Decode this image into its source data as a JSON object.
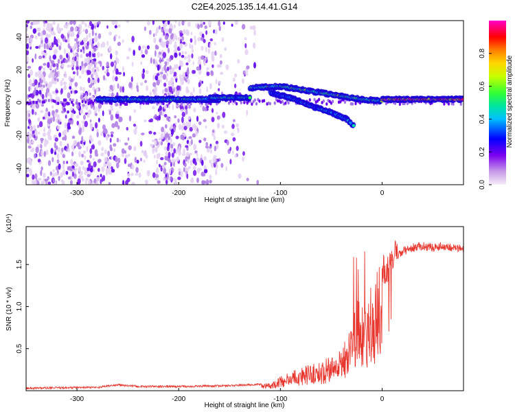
{
  "title": "C2E4.2025.135.14.41.G14",
  "chart_data": [
    {
      "type": "heatmap",
      "xlabel": "Height of straight line (km)",
      "ylabel": "Frequency (Hz)",
      "xlim": [
        -350,
        80
      ],
      "ylim": [
        -50,
        50
      ],
      "xticks": [
        -300,
        -200,
        -100,
        0
      ],
      "yticks": [
        -40,
        -20,
        0,
        20,
        40
      ],
      "colorbar": {
        "label": "Normalized spectral amplitude",
        "range": [
          0,
          1
        ],
        "ticks": [
          "0.0",
          "0.2",
          "0.4",
          "0.6",
          "0.8"
        ]
      },
      "ridges": [
        {
          "x": [
            -280,
            -160
          ],
          "y": [
            2,
            2
          ],
          "amplitude": 0.55
        },
        {
          "x": [
            -170,
            -130
          ],
          "y": [
            3,
            3
          ],
          "amplitude": 0.55
        },
        {
          "x": [
            -130,
            -100,
            -80,
            -60,
            -40,
            -20,
            0
          ],
          "y": [
            9,
            10,
            8,
            6,
            4,
            2,
            1
          ],
          "amplitude": 0.6
        },
        {
          "x": [
            -110,
            -90,
            -70,
            -50,
            -35,
            -28
          ],
          "y": [
            6,
            3,
            -2,
            -6,
            -10,
            -14
          ],
          "amplitude": 0.45
        },
        {
          "x": [
            0,
            80
          ],
          "y": [
            2,
            2
          ],
          "amplitude": 1.0
        }
      ]
    },
    {
      "type": "line",
      "xlabel": "Height of straight line (km)",
      "ylabel": "SNR (10 * v/v)",
      "y_multiplier": "(x10⁴)",
      "xlim": [
        -350,
        80
      ],
      "ylim": [
        0,
        1.95
      ],
      "xticks": [
        -300,
        -200,
        -100,
        0
      ],
      "yticks": [
        "0.5",
        "1.0",
        "1.5"
      ],
      "color": "#e8372f",
      "envelope_x": [
        -350,
        -280,
        -260,
        -240,
        -200,
        -150,
        -110,
        -100,
        -80,
        -60,
        -45,
        -35,
        -28,
        -22,
        -18,
        -15,
        -10,
        -5,
        0,
        5,
        10,
        15,
        20,
        30,
        40,
        50,
        60,
        70,
        80
      ],
      "envelope_y": [
        0.03,
        0.04,
        0.07,
        0.05,
        0.05,
        0.06,
        0.08,
        0.15,
        0.25,
        0.3,
        0.4,
        0.55,
        0.9,
        1.05,
        0.9,
        0.95,
        1.1,
        1.3,
        1.4,
        1.45,
        1.55,
        1.6,
        1.65,
        1.7,
        1.72,
        1.7,
        1.72,
        1.7,
        1.68
      ]
    }
  ],
  "colors": {
    "line": "#e8372f",
    "colormap": [
      "#f0e0f6",
      "#c89ae8",
      "#8a2be2",
      "#5a00ee",
      "#0000ff",
      "#00bfff",
      "#00e5a0",
      "#33ff33",
      "#c8ff00",
      "#ffd700",
      "#ff8c00",
      "#ff0000",
      "#ff0066",
      "#ff00ff"
    ]
  }
}
